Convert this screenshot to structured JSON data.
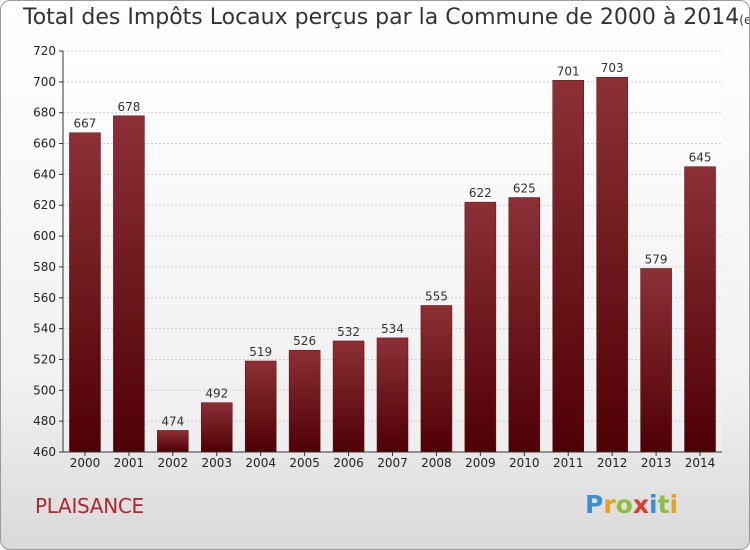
{
  "title": {
    "main": "Total des Impôts Locaux perçus par la Commune de 2000 à 2014",
    "unit": "(en milliers d'€)"
  },
  "commune": "PLAISANCE",
  "logo": {
    "letters": [
      "P",
      "r",
      "o",
      "x",
      "i",
      "t",
      "i"
    ],
    "colors": [
      "#3a8fd6",
      "#e8a21a",
      "#8dbf3a",
      "#e03a2f",
      "#3a8fd6",
      "#8dbf3a",
      "#e8a21a"
    ]
  },
  "chart_data": {
    "type": "bar",
    "title": "Total des Impôts Locaux perçus par la Commune de 2000 à 2014",
    "xlabel": "",
    "ylabel": "",
    "categories": [
      "2000",
      "2001",
      "2002",
      "2003",
      "2004",
      "2005",
      "2006",
      "2007",
      "2008",
      "2009",
      "2010",
      "2011",
      "2012",
      "2013",
      "2014"
    ],
    "values": [
      667,
      678,
      474,
      492,
      519,
      526,
      532,
      534,
      555,
      622,
      625,
      701,
      703,
      579,
      645
    ],
    "ylim": [
      460,
      720
    ],
    "yticks": [
      460,
      480,
      500,
      520,
      540,
      560,
      580,
      600,
      620,
      640,
      660,
      680,
      700,
      720
    ],
    "grid": true,
    "bar_color": "#7a1a22"
  }
}
